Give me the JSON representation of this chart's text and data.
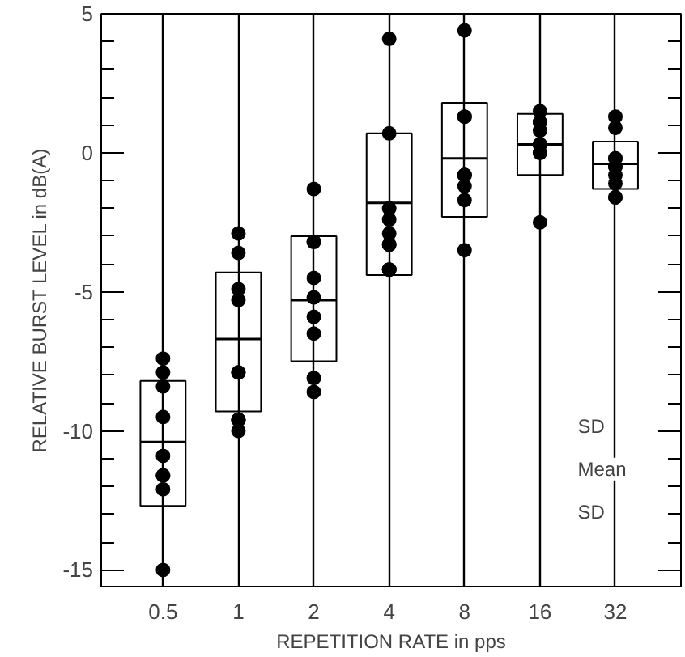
{
  "chart_data": {
    "type": "box",
    "xlabel": "REPETITION RATE in pps",
    "ylabel": "RELATIVE BURST LEVEL in dB(A)",
    "categories": [
      "0.5",
      "1",
      "2",
      "4",
      "8",
      "16",
      "32"
    ],
    "ylim": [
      -15.6,
      5
    ],
    "yticks": [
      {
        "value": -15,
        "label": "-15"
      },
      {
        "value": -14,
        "label": null
      },
      {
        "value": -13,
        "label": null
      },
      {
        "value": -12,
        "label": null
      },
      {
        "value": -11,
        "label": null
      },
      {
        "value": -10,
        "label": "-10"
      },
      {
        "value": -9,
        "label": null
      },
      {
        "value": -8,
        "label": null
      },
      {
        "value": -7,
        "label": null
      },
      {
        "value": -6,
        "label": null
      },
      {
        "value": -5,
        "label": "-5"
      },
      {
        "value": -4,
        "label": null
      },
      {
        "value": -3,
        "label": null
      },
      {
        "value": -2,
        "label": null
      },
      {
        "value": -1,
        "label": null
      },
      0,
      {
        "value": 1,
        "label": null
      },
      {
        "value": 2,
        "label": null
      },
      {
        "value": 3,
        "label": null
      },
      {
        "value": 4,
        "label": null
      },
      5
    ],
    "grid": "x",
    "boxes": [
      {
        "low": -12.7,
        "q1": -12.7,
        "median": -10.4,
        "q3": -8.2,
        "high": -8.2
      },
      {
        "low": -9.3,
        "q1": -9.3,
        "median": -6.7,
        "q3": -4.3,
        "high": -4.3
      },
      {
        "low": -7.5,
        "q1": -7.5,
        "median": -5.3,
        "q3": -3.0,
        "high": -3.0
      },
      {
        "low": -4.4,
        "q1": -4.4,
        "median": -1.8,
        "q3": 0.7,
        "high": 0.7
      },
      {
        "low": -2.3,
        "q1": -2.3,
        "median": -0.2,
        "q3": 1.8,
        "high": 1.8
      },
      {
        "low": -0.8,
        "q1": -0.8,
        "median": 0.3,
        "q3": 1.4,
        "high": 1.4
      },
      {
        "low": -1.3,
        "q1": -1.3,
        "median": -0.4,
        "q3": 0.4,
        "high": 0.4
      }
    ],
    "series": [
      {
        "type": "scatter",
        "color": "#000000",
        "marker": "circle",
        "x": [
          "0.5",
          "0.5",
          "0.5",
          "0.5",
          "0.5",
          "0.5",
          "0.5",
          "0.5",
          "0.5",
          "1",
          "1",
          "1",
          "1",
          "1",
          "1",
          "1",
          "1",
          "1",
          "1",
          "2",
          "2",
          "2",
          "2",
          "2",
          "2",
          "2",
          "2",
          "2",
          "4",
          "4",
          "4",
          "4",
          "4",
          "4",
          "4",
          "4",
          "4",
          "4",
          "8",
          "8",
          "8",
          "8",
          "8",
          "8",
          "8",
          "8",
          "8",
          "16",
          "16",
          "16",
          "16",
          "16",
          "16",
          "16",
          "16",
          "16",
          "16",
          "32",
          "32",
          "32",
          "32",
          "32",
          "32",
          "32",
          "32",
          "32",
          "32"
        ],
        "values": [
          -7.4,
          -7.9,
          -8.4,
          -9.5,
          -10.9,
          -11.6,
          -11.6,
          -12.1,
          -15.0,
          -2.9,
          -3.6,
          -4.9,
          -5.3,
          -7.9,
          -7.9,
          -9.6,
          -9.6,
          -9.6,
          -10.0,
          -1.3,
          -3.2,
          -3.2,
          -4.5,
          -5.2,
          -5.9,
          -6.5,
          -8.1,
          -8.6,
          4.1,
          0.7,
          -2.0,
          -2.4,
          -2.9,
          -3.3,
          -3.3,
          -4.2,
          -4.2,
          -4.2,
          4.4,
          1.3,
          1.3,
          -0.8,
          -0.8,
          -0.8,
          -1.2,
          -1.7,
          -3.5,
          1.5,
          1.1,
          1.1,
          0.8,
          0.3,
          0.3,
          0.3,
          0.0,
          0.0,
          -2.5,
          1.3,
          0.9,
          -0.2,
          -0.2,
          -0.5,
          -0.5,
          -0.8,
          -1.1,
          -1.6,
          -1.6
        ]
      }
    ],
    "annotations": [
      "SD",
      "Mean",
      "SD"
    ]
  }
}
